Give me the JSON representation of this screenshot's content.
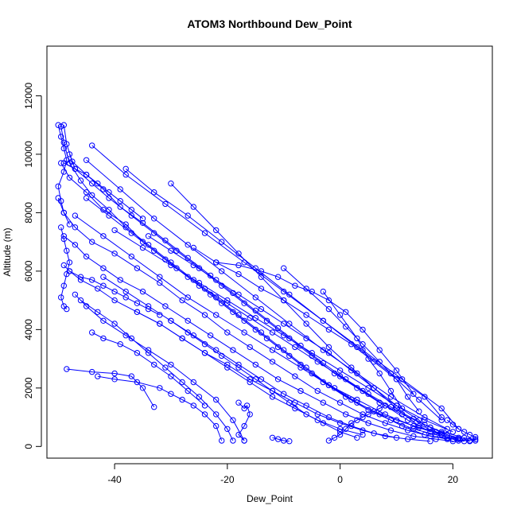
{
  "chart_data": {
    "type": "line",
    "title": "ATOM3 Northbound Dew_Point",
    "xlabel": "Dew_Point",
    "ylabel": "Altitude (m)",
    "xlim": [
      -52,
      27
    ],
    "ylim": [
      -400,
      13700
    ],
    "xticks": [
      -40,
      -20,
      0,
      20
    ],
    "yticks": [
      0,
      2000,
      4000,
      6000,
      8000,
      10000,
      12000
    ],
    "xtick_labels": [
      "-40",
      "-20",
      "0",
      "20"
    ],
    "ytick_labels": [
      "0",
      "2000",
      "4000",
      "6000",
      "8000",
      "10000",
      "12000"
    ],
    "series_color": "#0000ff",
    "marker": "open-circle",
    "grid": false,
    "series": [
      {
        "x": [
          -49.5,
          -49,
          -48,
          -46,
          -44,
          -41,
          -38,
          -34,
          -30,
          -26,
          -22,
          -18,
          -14,
          -10,
          -6,
          -2,
          2,
          6,
          10,
          14,
          18,
          21,
          23
        ],
        "y": [
          10950,
          10400,
          9700,
          9100,
          8600,
          8100,
          7500,
          6900,
          6300,
          5700,
          5100,
          4500,
          3900,
          3300,
          2700,
          2100,
          1600,
          1200,
          900,
          650,
          450,
          300,
          200
        ]
      },
      {
        "x": [
          -49,
          -48.5,
          -47.5,
          -45,
          -42,
          -39,
          -35,
          -31,
          -27,
          -23,
          -19,
          -15,
          -11,
          -7,
          -3,
          1,
          5,
          9,
          13,
          16,
          19,
          21
        ],
        "y": [
          11000,
          10350,
          9750,
          9300,
          8800,
          8200,
          7650,
          7050,
          6450,
          5850,
          5250,
          4650,
          4050,
          3450,
          2850,
          2300,
          1800,
          1350,
          950,
          650,
          400,
          250
        ]
      },
      {
        "x": [
          -48,
          -47,
          -44,
          -41,
          -37,
          -33,
          -29,
          -25,
          -21,
          -17,
          -13,
          -9,
          -5,
          -1,
          3,
          7,
          11,
          15,
          18,
          22,
          24
        ],
        "y": [
          10000,
          9500,
          9000,
          8500,
          7900,
          7300,
          6700,
          6100,
          5500,
          4900,
          4300,
          3700,
          3100,
          2500,
          2000,
          1500,
          1100,
          750,
          500,
          300,
          200
        ]
      },
      {
        "x": [
          -49.5,
          -48,
          -45,
          -42,
          -38,
          -35,
          -31,
          -27,
          -23,
          -19,
          -15,
          -11,
          -7,
          -3,
          1,
          5,
          9,
          13,
          17,
          21
        ],
        "y": [
          9700,
          9200,
          8700,
          8100,
          7600,
          7000,
          6400,
          5800,
          5200,
          4600,
          4000,
          3400,
          2800,
          2200,
          1700,
          1250,
          900,
          600,
          400,
          250
        ]
      },
      {
        "x": [
          -50,
          -49,
          -47,
          -44,
          -40,
          -36,
          -32,
          -28,
          -24,
          -20,
          -16,
          -12,
          -8,
          -4,
          0,
          4,
          8,
          12,
          16,
          20,
          23
        ],
        "y": [
          8500,
          8000,
          7500,
          7000,
          6600,
          6100,
          5600,
          5000,
          4500,
          3900,
          3400,
          2900,
          2400,
          1900,
          1500,
          1100,
          800,
          550,
          350,
          250,
          180
        ]
      },
      {
        "x": [
          -49,
          -47,
          -45,
          -42,
          -39,
          -35,
          -31,
          -27,
          -23,
          -19,
          -15,
          -11,
          -7,
          -3,
          1,
          5,
          9,
          13,
          17,
          20
        ],
        "y": [
          7200,
          6900,
          6500,
          6100,
          5700,
          5300,
          4800,
          4300,
          3800,
          3300,
          2800,
          2300,
          1900,
          1500,
          1100,
          800,
          550,
          350,
          250,
          180
        ]
      },
      {
        "x": [
          -48,
          -46,
          -43,
          -40,
          -36,
          -32,
          -28,
          -24,
          -20,
          -16,
          -12,
          -8,
          -4,
          0,
          4,
          8,
          12,
          16
        ],
        "y": [
          6000,
          5700,
          5400,
          5000,
          4600,
          4200,
          3700,
          3200,
          2800,
          2300,
          1900,
          1500,
          1100,
          800,
          550,
          350,
          250,
          180
        ]
      },
      {
        "x": [
          -47,
          -45,
          -42,
          -38,
          -34,
          -30,
          -26,
          -22,
          -19,
          -17
        ],
        "y": [
          5200,
          4800,
          4300,
          3800,
          3300,
          2800,
          2200,
          1600,
          900,
          200
        ]
      },
      {
        "x": [
          -46,
          -43,
          -40,
          -37,
          -34,
          -31,
          -28,
          -25,
          -22,
          -20,
          -19
        ],
        "y": [
          5000,
          4600,
          4200,
          3700,
          3200,
          2700,
          2200,
          1700,
          1100,
          600,
          200
        ]
      },
      {
        "x": [
          -48.5,
          -44,
          -40,
          -37,
          -35,
          -33
        ],
        "y": [
          2650,
          2550,
          2500,
          2400,
          2000,
          1350
        ]
      },
      {
        "x": [
          -43,
          -40,
          -36,
          -32,
          -30,
          -28,
          -26,
          -24,
          -22,
          -21
        ],
        "y": [
          2400,
          2300,
          2200,
          2000,
          1800,
          1600,
          1400,
          1100,
          700,
          200
        ]
      },
      {
        "x": [
          -44,
          -42,
          -39,
          -36,
          -33,
          -30,
          -27,
          -24
        ],
        "y": [
          3900,
          3700,
          3500,
          3200,
          2800,
          2400,
          1900,
          1400
        ]
      },
      {
        "x": [
          -18,
          -17,
          -16.5,
          -16,
          -17,
          -18,
          -17
        ],
        "y": [
          1500,
          1300,
          1400,
          1100,
          700,
          400,
          200
        ]
      },
      {
        "x": [
          -12,
          -11,
          -10,
          -9
        ],
        "y": [
          300,
          250,
          200,
          180
        ]
      },
      {
        "x": [
          -38,
          -33,
          -27,
          -21,
          -15,
          -9,
          -3,
          3,
          9,
          15,
          18
        ],
        "y": [
          9500,
          8700,
          7900,
          7000,
          6100,
          5200,
          4300,
          3400,
          2500,
          1700,
          1000
        ]
      },
      {
        "x": [
          -44,
          -38,
          -31,
          -24,
          -17,
          -10,
          -3,
          4,
          11,
          18,
          21
        ],
        "y": [
          10300,
          9300,
          8300,
          7300,
          6300,
          5300,
          4300,
          3300,
          2300,
          1300,
          600
        ]
      },
      {
        "x": [
          -45,
          -39,
          -33,
          -27,
          -21,
          -15,
          -9,
          -3,
          3,
          9,
          15,
          19
        ],
        "y": [
          9800,
          8800,
          7800,
          6900,
          6000,
          5100,
          4200,
          3300,
          2500,
          1700,
          1000,
          600
        ]
      },
      {
        "x": [
          -30,
          -26,
          -22,
          -18,
          -14,
          -10,
          -6,
          -2,
          2,
          6,
          10,
          14
        ],
        "y": [
          9000,
          8200,
          7400,
          6600,
          5800,
          5000,
          4200,
          3400,
          2700,
          2000,
          1300,
          700
        ]
      },
      {
        "x": [
          -34,
          -30,
          -26,
          -22,
          -18,
          -14,
          -10,
          -6,
          -2,
          2,
          6,
          10,
          14,
          16
        ],
        "y": [
          7200,
          6700,
          6200,
          5700,
          5200,
          4700,
          4200,
          3700,
          3200,
          2600,
          2000,
          1400,
          900,
          500
        ]
      },
      {
        "x": [
          -26,
          -22,
          -18,
          -14,
          -10,
          -6,
          -2,
          2,
          6,
          10,
          14,
          18
        ],
        "y": [
          6800,
          6300,
          5900,
          5400,
          5000,
          4500,
          4000,
          3500,
          2900,
          2300,
          1600,
          900
        ]
      },
      {
        "x": [
          -22,
          -18,
          -14,
          -11,
          -8,
          -5,
          -2,
          1,
          4,
          7,
          10,
          13
        ],
        "y": [
          6300,
          6200,
          6000,
          5800,
          5500,
          5300,
          5000,
          4600,
          4000,
          3300,
          2600,
          1800
        ]
      },
      {
        "x": [
          -3,
          0,
          3,
          5,
          7,
          9,
          11
        ],
        "y": [
          5300,
          4500,
          3700,
          3000,
          2500,
          1900,
          1300
        ]
      },
      {
        "x": [
          -10,
          -6,
          -2,
          1,
          4,
          7,
          10,
          12,
          14
        ],
        "y": [
          6100,
          5400,
          4700,
          4100,
          3500,
          2900,
          2300,
          1700,
          1200
        ]
      },
      {
        "x": [
          -49,
          -47,
          -45,
          -43,
          -41,
          -39,
          -37,
          -35
        ],
        "y": [
          9700,
          9500,
          9300,
          9000,
          8700,
          8400,
          8100,
          7800
        ]
      },
      {
        "x": [
          -50,
          -49.5,
          -49,
          -48.5,
          -49,
          -50,
          -49.5,
          -49,
          -48
        ],
        "y": [
          11000,
          10600,
          10200,
          9800,
          9400,
          8900,
          8400,
          8000,
          7600
        ]
      },
      {
        "x": [
          -49.5,
          -49,
          -48.5,
          -48,
          -48.5,
          -49,
          -49.5,
          -49,
          -48.5
        ],
        "y": [
          7500,
          7100,
          6700,
          6300,
          5900,
          5500,
          5100,
          4800,
          4700
        ]
      },
      {
        "x": [
          -49,
          -48,
          -46,
          -44,
          -42,
          -40,
          -38,
          -36,
          -34,
          -32
        ],
        "y": [
          6200,
          6000,
          5800,
          5700,
          5500,
          5300,
          5100,
          4900,
          4700,
          4500
        ]
      },
      {
        "x": [
          -2,
          -1,
          0,
          1,
          2,
          3,
          4,
          5,
          6,
          7,
          8
        ],
        "y": [
          200,
          300,
          400,
          600,
          800,
          900,
          1000,
          1100,
          1200,
          1300,
          1400
        ]
      },
      {
        "x": [
          19,
          20,
          21,
          22,
          23,
          24,
          24,
          23
        ],
        "y": [
          900,
          750,
          600,
          500,
          400,
          320,
          250,
          200
        ]
      },
      {
        "x": [
          16,
          17,
          18,
          19,
          20,
          21,
          22
        ],
        "y": [
          650,
          500,
          400,
          300,
          250,
          200,
          180
        ]
      },
      {
        "x": [
          -45,
          -41,
          -37,
          -33,
          -29,
          -25,
          -21,
          -17,
          -13,
          -9,
          -5,
          -1,
          3,
          7,
          11,
          15,
          19
        ],
        "y": [
          8500,
          7900,
          7300,
          6700,
          6100,
          5500,
          4900,
          4300,
          3700,
          3100,
          2500,
          2000,
          1500,
          1100,
          700,
          400,
          250
        ]
      },
      {
        "x": [
          -47,
          -42,
          -37,
          -32,
          -27,
          -22,
          -17,
          -12,
          -7,
          -2,
          3,
          8,
          13,
          18
        ],
        "y": [
          7900,
          7200,
          6500,
          5800,
          5100,
          4500,
          3900,
          3300,
          2700,
          2100,
          1600,
          1100,
          700,
          400
        ]
      },
      {
        "x": [
          -40,
          -35,
          -30,
          -25,
          -20,
          -15,
          -10,
          -5,
          0,
          5,
          10,
          15,
          20
        ],
        "y": [
          7400,
          6800,
          6200,
          5600,
          5000,
          4400,
          3800,
          3200,
          2600,
          2000,
          1400,
          900,
          500
        ]
      },
      {
        "x": [
          -42,
          -38,
          -34,
          -30,
          -26,
          -22,
          -18,
          -14,
          -10,
          -6,
          -2,
          2,
          6,
          10
        ],
        "y": [
          5800,
          5300,
          4800,
          4300,
          3800,
          3300,
          2800,
          2300,
          1800,
          1400,
          1000,
          700,
          450,
          300
        ]
      },
      {
        "x": [
          -36,
          -32,
          -28,
          -24,
          -20,
          -16,
          -12,
          -8,
          -4,
          0,
          4
        ],
        "y": [
          4600,
          4200,
          3700,
          3200,
          2700,
          2200,
          1700,
          1300,
          900,
          600,
          400
        ]
      },
      {
        "x": [
          -30,
          -27,
          -24,
          -21,
          -18,
          -15,
          -12,
          -9,
          -6,
          -3,
          0,
          3
        ],
        "y": [
          4300,
          3900,
          3500,
          3100,
          2700,
          2300,
          1900,
          1500,
          1100,
          800,
          500,
          300
        ]
      },
      {
        "x": [
          -24,
          -20,
          -16,
          -12,
          -8,
          -4,
          0,
          4,
          8,
          12,
          16
        ],
        "y": [
          5400,
          4900,
          4400,
          3900,
          3400,
          2900,
          2400,
          1900,
          1400,
          900,
          500
        ]
      }
    ]
  }
}
